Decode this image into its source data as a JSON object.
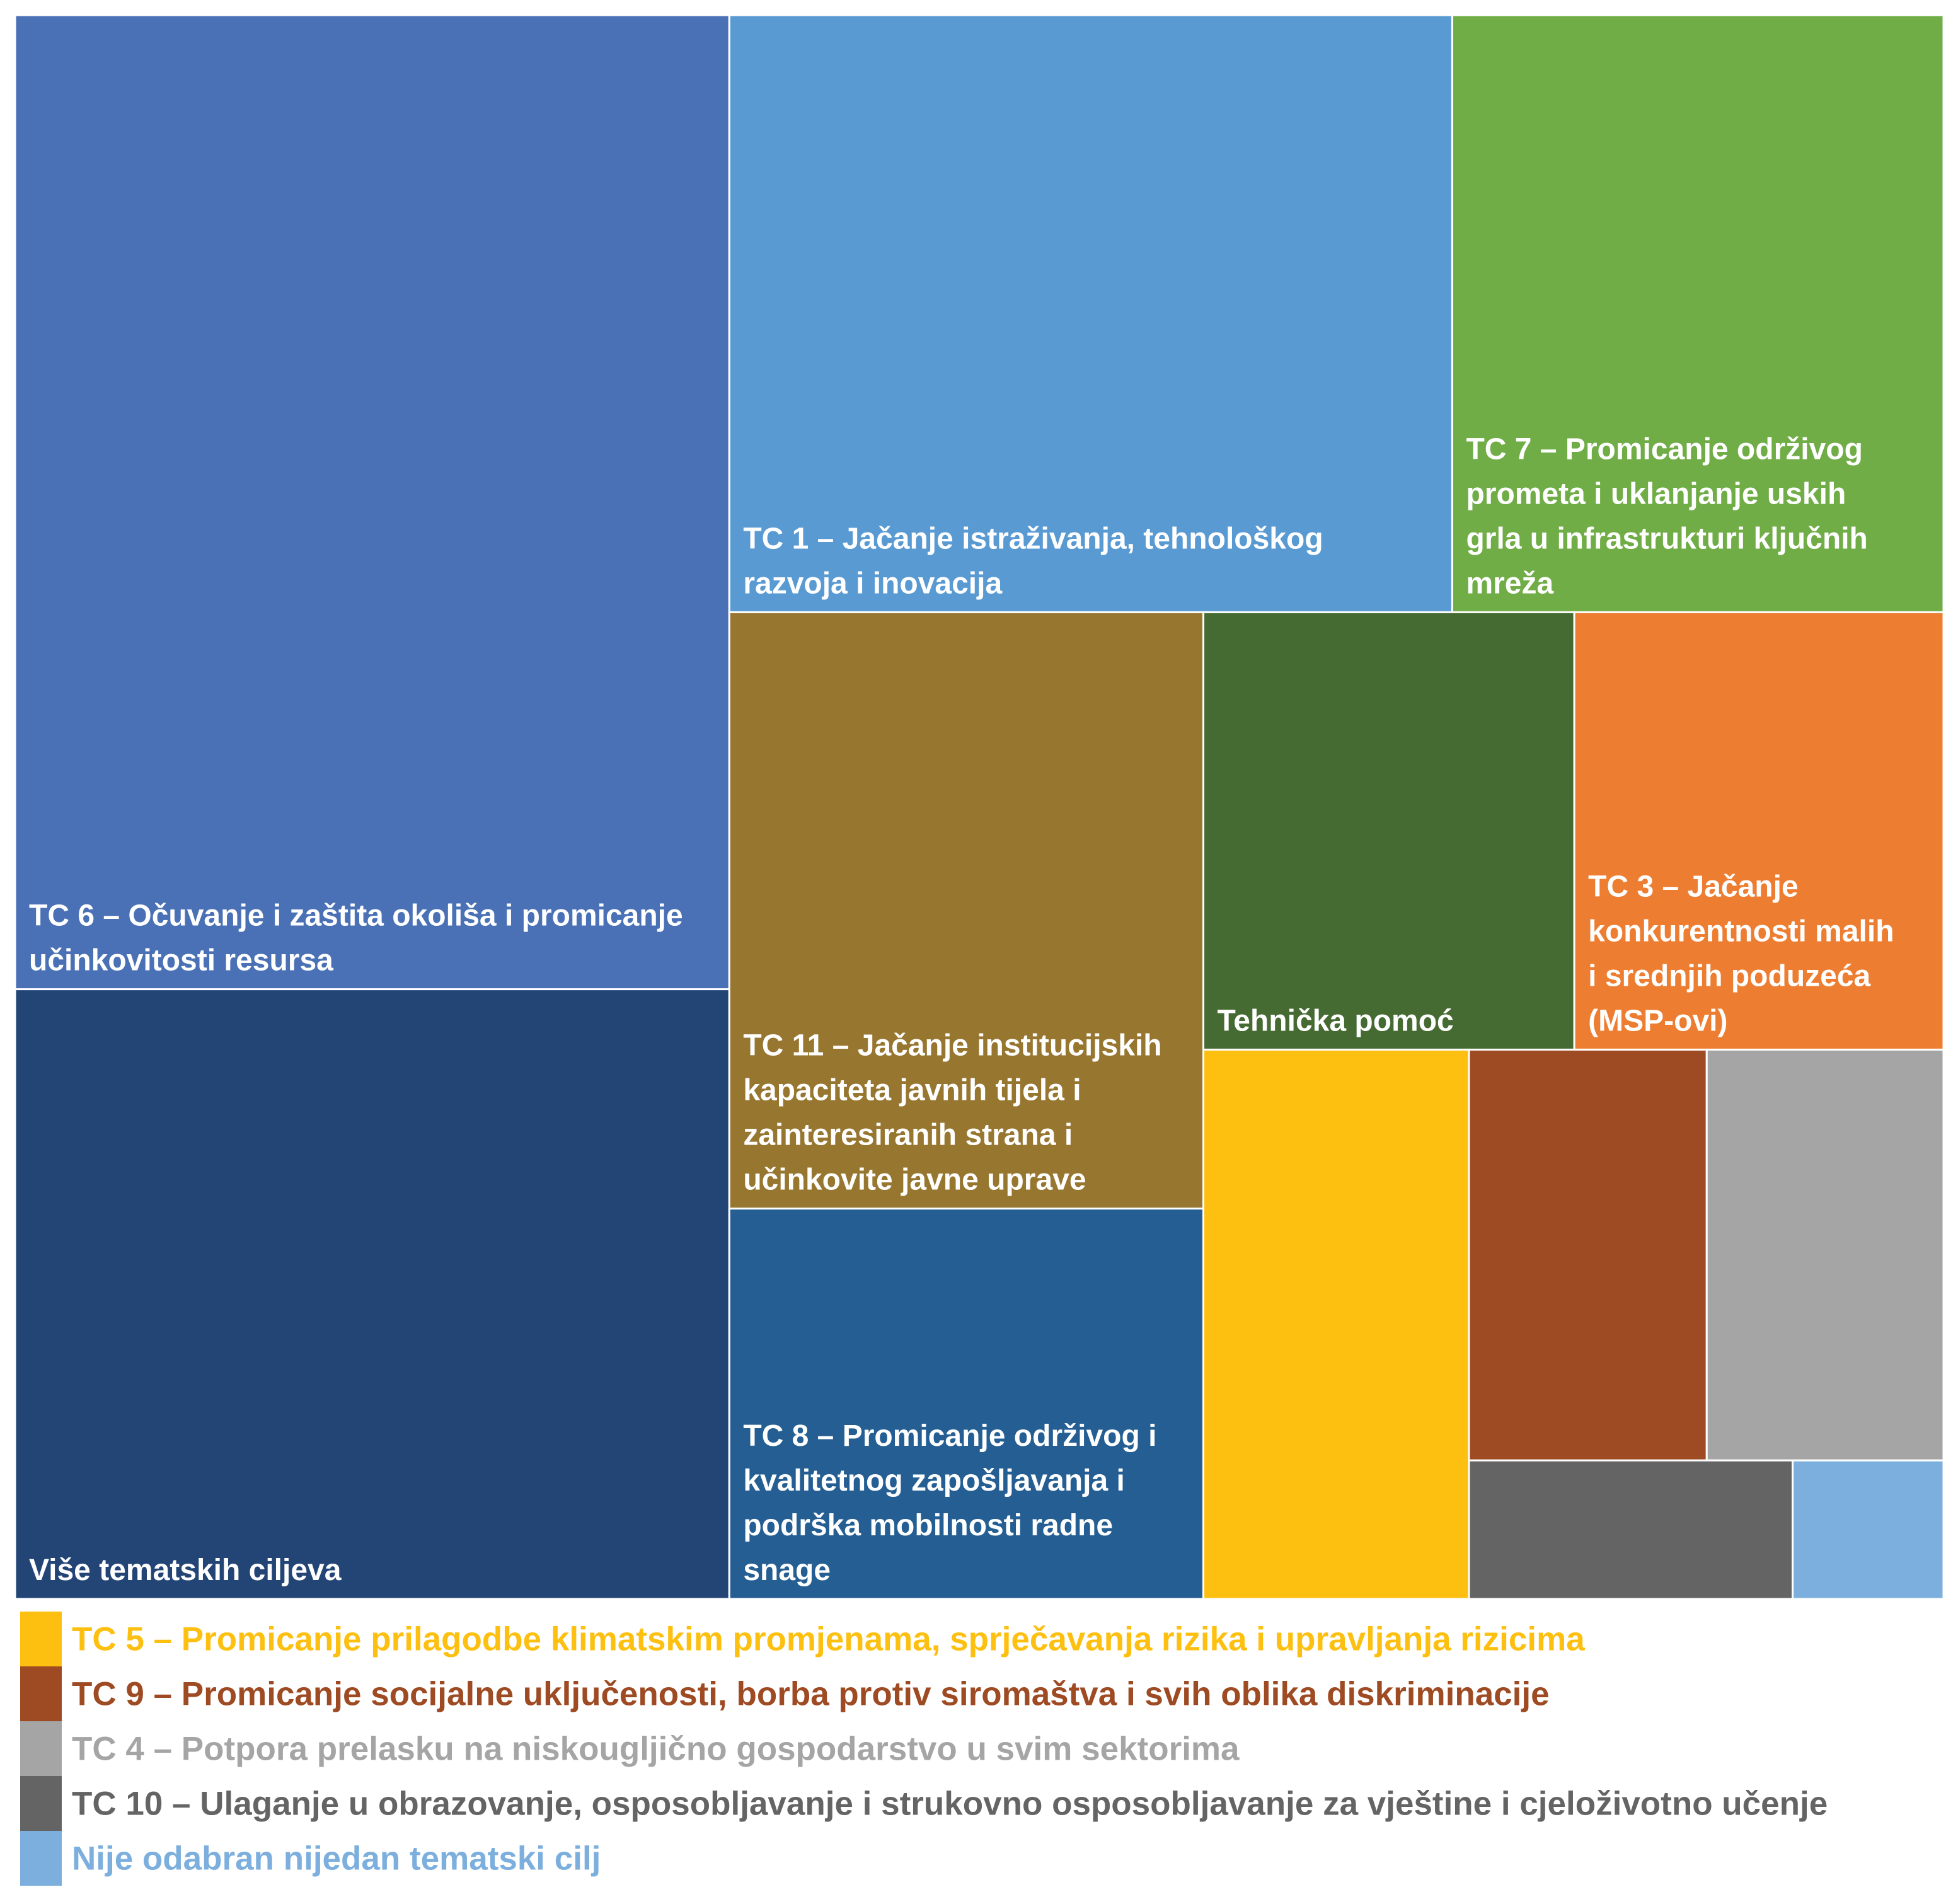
{
  "chart_data": {
    "type": "treemap",
    "title": "",
    "items": [
      {
        "name": "TC 6 – Očuvanje i zaštita okoliša i promicanje učinkovitosti resursa",
        "lines": [
          "TC 6 – Očuvanje i zaštita okoliša i promicanje",
          "učinkovitosti resursa"
        ],
        "value": 18.31,
        "color": "#4A71B5",
        "labelled": true
      },
      {
        "name": "Više tematskih ciljeva",
        "lines": [
          "Više tematskih ciljeva"
        ],
        "value": 11.46,
        "color": "#234576",
        "labelled": true
      },
      {
        "name": "TC 1 – Jačanje istraživanja, tehnološkog razvoja i inovacija",
        "lines": [
          "TC 1 – Jačanje istraživanja, tehnološkog",
          "razvoja i inovacija"
        ],
        "value": 11.36,
        "color": "#5A9AD2",
        "labelled": true
      },
      {
        "name": "TC 7 – Promicanje održivog prometa i uklanjanje uskih grla u infrastrukturi ključnih mreža",
        "lines": [
          "TC 7 – Promicanje održivog",
          "prometa i uklanjanje uskih",
          "grla u infrastrukturi ključnih",
          "mreža"
        ],
        "value": 7.72,
        "color": "#70AD47",
        "labelled": true
      },
      {
        "name": "TC 11 – Jačanje institucijskih kapaciteta javnih tijela i zainteresiranih strana i učinkovite javne uprave",
        "lines": [
          "TC 11 – Jačanje institucijskih",
          "kapaciteta javnih tijela i",
          "zainteresiranih strana i",
          "učinkovite javne uprave"
        ],
        "value": 7.44,
        "color": "#977630",
        "labelled": true
      },
      {
        "name": "TC 8 – Promicanje održivog i kvalitetnog zapošljavanja i podrška mobilnosti radne snage",
        "lines": [
          "TC 8 – Promicanje održivog i",
          "kvalitetnog zapošljavanja i",
          "podrška mobilnosti radne",
          "snage"
        ],
        "value": 4.87,
        "color": "#245E93",
        "labelled": true
      },
      {
        "name": "Tehnička pomoć",
        "lines": [
          "Tehnička pomoć"
        ],
        "value": 4.27,
        "color": "#466B32",
        "labelled": true
      },
      {
        "name": "TC 3 – Jačanje konkurentnosti malih i srednjih poduzeća (MSP-ovi)",
        "lines": [
          "TC 3 – Jačanje",
          "konkurentnosti malih",
          "i srednjih poduzeća",
          "(MSP-ovi)"
        ],
        "value": 4.25,
        "color": "#ED7D31",
        "labelled": true
      },
      {
        "name": "TC 5 – Promicanje prilagodbe klimatskim promjenama, sprječavanja rizika i upravljanja rizicima",
        "value": 3.84,
        "color": "#FDC010",
        "labelled": false
      },
      {
        "name": "TC 9 – Promicanje socijalne uključenosti, borba protiv siromaštva i svih oblika diskriminacije",
        "value": 2.57,
        "color": "#9E4A23",
        "labelled": false
      },
      {
        "name": "TC 4 – Potpora prelasku na niskougljično gospodarstvo u svim sektorima",
        "value": 2.56,
        "color": "#A5A5A5",
        "labelled": false
      },
      {
        "name": "TC 10 – Ulaganje u obrazovanje, osposobljavanje i strukovno osposobljavanje za vještine i cjeloživotno učenje",
        "value": 1.18,
        "color": "#646464",
        "labelled": false
      },
      {
        "name": "Nije odabran nijedan tematski cilj",
        "value": 0.55,
        "color": "#7CAFDD",
        "labelled": false
      }
    ],
    "legend": [
      {
        "label": "TC 5 – Promicanje prilagodbe klimatskim promjenama, sprječavanja rizika i upravljanja rizicima",
        "color": "#FDC010"
      },
      {
        "label": "TC 9 – Promicanje socijalne uključenosti, borba protiv siromaštva i svih oblika diskriminacije",
        "color": "#9E4A23"
      },
      {
        "label": "TC 4 – Potpora prelasku na niskougljično gospodarstvo u svim sektorima",
        "color": "#A5A5A5"
      },
      {
        "label": "TC 10 – Ulaganje u obrazovanje, osposobljavanje i strukovno osposobljavanje za vještine i cjeloživotno učenje",
        "color": "#646464"
      },
      {
        "label": "Nije odabran nijedan tematski cilj",
        "color": "#7CAFDD"
      }
    ],
    "legend_position": "bottom"
  }
}
